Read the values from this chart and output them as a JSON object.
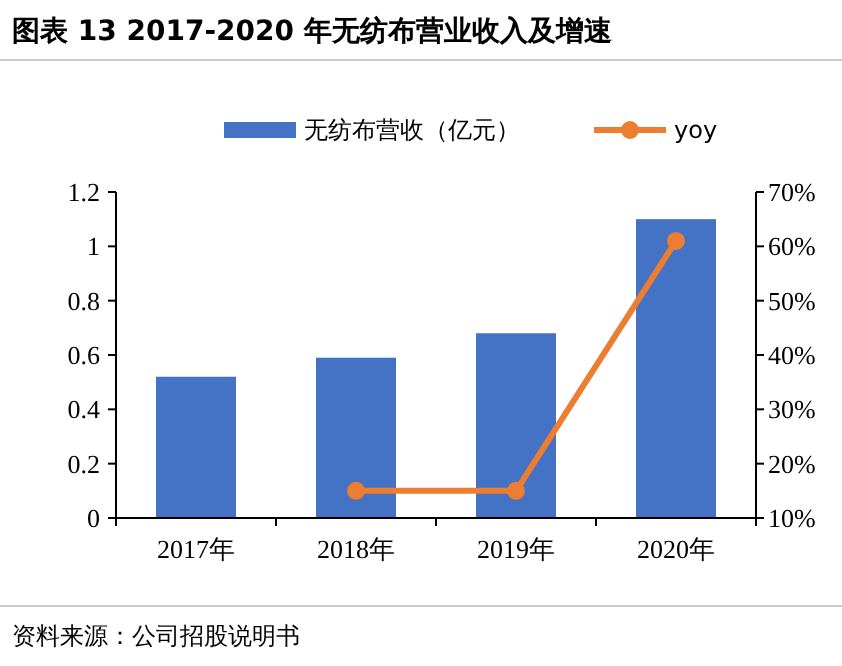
{
  "chart_data": {
    "type": "bar",
    "title": "图表 13  2017-2020 年无纺布营业收入及增速",
    "categories": [
      "2017年",
      "2018年",
      "2019年",
      "2020年"
    ],
    "series": [
      {
        "name": "无纺布营收（亿元）",
        "color": "#4472c4",
        "values": [
          0.52,
          0.59,
          0.68,
          1.1
        ]
      },
      {
        "name": "yoy",
        "type": "line",
        "axis": "y2",
        "color": "#ed7d31",
        "values": [
          null,
          15,
          15,
          61
        ]
      }
    ],
    "ylim": [
      0,
      1.2
    ],
    "yticks": [
      0,
      0.2,
      0.4,
      0.6,
      0.8,
      1,
      1.2
    ],
    "y2lim": [
      10,
      70
    ],
    "y2ticks": [
      {
        "value": 10,
        "label": "10%"
      },
      {
        "value": 20,
        "label": "20%"
      },
      {
        "value": 30,
        "label": "30%"
      },
      {
        "value": 40,
        "label": "40%"
      },
      {
        "value": 50,
        "label": "50%"
      },
      {
        "value": 60,
        "label": "60%"
      },
      {
        "value": 70,
        "label": "70%"
      }
    ],
    "legend": "top",
    "marker": "circle",
    "grid": false,
    "annotations": [
      "资料来源：公司招股说明书"
    ]
  }
}
